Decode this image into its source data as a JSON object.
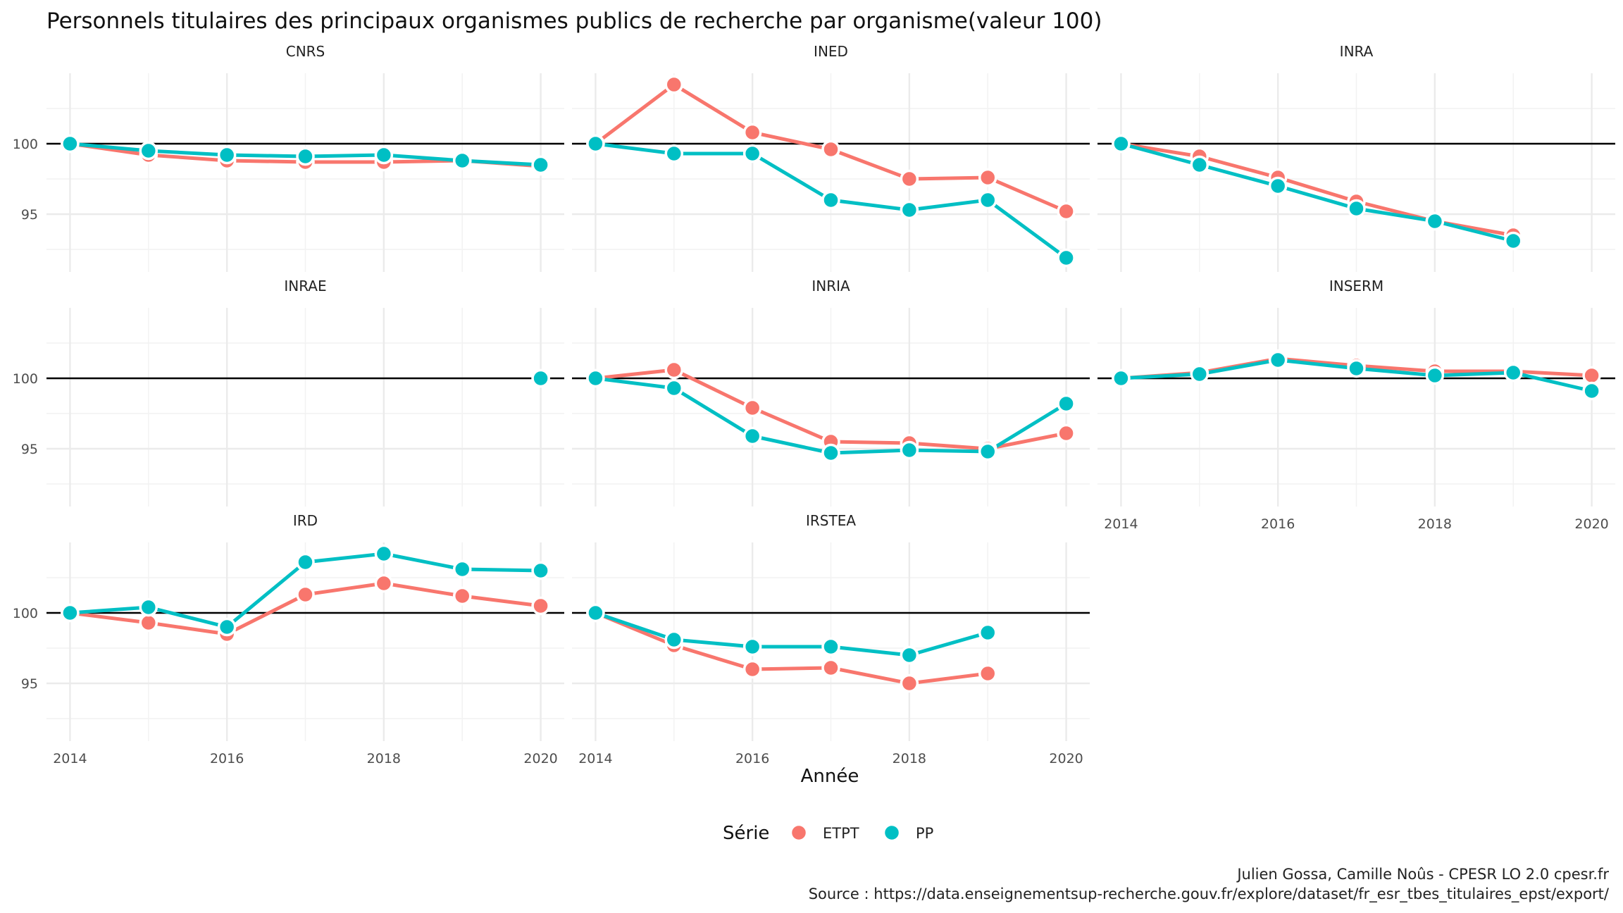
{
  "chart_data": {
    "type": "line",
    "title": "Personnels titulaires des principaux organismes publics de recherche par organisme(valeur 100)",
    "xlabel": "Année",
    "ylabel": "",
    "x_ticks": [
      2014,
      2016,
      2018,
      2020
    ],
    "y_ticks": [
      95,
      100
    ],
    "xlim": [
      2013.7,
      2020.3
    ],
    "ylim": [
      90.9,
      105.0
    ],
    "reference_line": 100,
    "legend": {
      "title": "Série",
      "position": "bottom",
      "entries": [
        {
          "name": "ETPT",
          "color": "#F8766D"
        },
        {
          "name": "PP",
          "color": "#00BFC4"
        }
      ]
    },
    "panels": [
      {
        "name": "CNRS",
        "x": [
          2014,
          2015,
          2016,
          2017,
          2018,
          2019,
          2020
        ],
        "series": [
          {
            "name": "ETPT",
            "values": [
              100,
              99.2,
              98.8,
              98.7,
              98.7,
              98.8,
              98.4
            ]
          },
          {
            "name": "PP",
            "values": [
              100,
              99.5,
              99.2,
              99.1,
              99.2,
              98.8,
              98.5
            ]
          }
        ]
      },
      {
        "name": "INED",
        "x": [
          2014,
          2015,
          2016,
          2017,
          2018,
          2019,
          2020
        ],
        "series": [
          {
            "name": "ETPT",
            "values": [
              100,
              104.2,
              100.8,
              99.6,
              97.5,
              97.6,
              95.2
            ]
          },
          {
            "name": "PP",
            "values": [
              100,
              99.3,
              99.3,
              96.0,
              95.3,
              96.0,
              91.9
            ]
          }
        ]
      },
      {
        "name": "INRA",
        "x": [
          2014,
          2015,
          2016,
          2017,
          2018,
          2019
        ],
        "series": [
          {
            "name": "ETPT",
            "values": [
              100,
              99.1,
              97.6,
              95.9,
              94.5,
              93.5
            ]
          },
          {
            "name": "PP",
            "values": [
              100,
              98.5,
              97.0,
              95.4,
              94.5,
              93.1
            ]
          }
        ]
      },
      {
        "name": "INRAE",
        "x": [
          2020
        ],
        "series": [
          {
            "name": "ETPT",
            "values": [
              100
            ]
          },
          {
            "name": "PP",
            "values": [
              100
            ]
          }
        ]
      },
      {
        "name": "INRIA",
        "x": [
          2014,
          2015,
          2016,
          2017,
          2018,
          2019,
          2020
        ],
        "series": [
          {
            "name": "ETPT",
            "values": [
              100,
              100.6,
              97.9,
              95.5,
              95.4,
              95.0,
              96.1
            ]
          },
          {
            "name": "PP",
            "values": [
              100,
              99.3,
              95.9,
              94.7,
              94.9,
              94.8,
              98.2
            ]
          }
        ]
      },
      {
        "name": "INSERM",
        "x": [
          2014,
          2015,
          2016,
          2017,
          2018,
          2019,
          2020
        ],
        "series": [
          {
            "name": "ETPT",
            "values": [
              100,
              100.4,
              101.4,
              100.9,
              100.5,
              100.5,
              100.2
            ]
          },
          {
            "name": "PP",
            "values": [
              100,
              100.3,
              101.3,
              100.7,
              100.2,
              100.4,
              99.1
            ]
          }
        ]
      },
      {
        "name": "IRD",
        "x": [
          2014,
          2015,
          2016,
          2017,
          2018,
          2019,
          2020
        ],
        "series": [
          {
            "name": "ETPT",
            "values": [
              100,
              99.3,
              98.5,
              101.3,
              102.1,
              101.2,
              100.5
            ]
          },
          {
            "name": "PP",
            "values": [
              100,
              100.4,
              99.0,
              103.6,
              104.2,
              103.1,
              103.0
            ]
          }
        ]
      },
      {
        "name": "IRSTEA",
        "x": [
          2014,
          2015,
          2016,
          2017,
          2018,
          2019
        ],
        "series": [
          {
            "name": "ETPT",
            "values": [
              100,
              97.7,
              96.0,
              96.1,
              95.0,
              95.7
            ]
          },
          {
            "name": "PP",
            "values": [
              100,
              98.1,
              97.6,
              97.6,
              97.0,
              98.6
            ]
          }
        ]
      }
    ]
  },
  "caption": {
    "line1": "Julien Gossa, Camille Noûs - CPESR LO 2.0 cpesr.fr",
    "line2": "Source : https://data.enseignementsup-recherche.gouv.fr/explore/dataset/fr_esr_tbes_titulaires_epst/export/"
  }
}
